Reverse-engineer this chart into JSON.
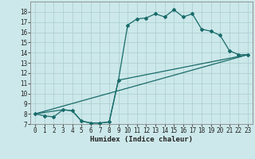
{
  "title": "",
  "xlabel": "Humidex (Indice chaleur)",
  "background_color": "#cce8ea",
  "grid_color": "#aacccc",
  "line_color": "#1a6b6b",
  "xlim": [
    -0.5,
    23.5
  ],
  "ylim": [
    7,
    19
  ],
  "xticks": [
    0,
    1,
    2,
    3,
    4,
    5,
    6,
    7,
    8,
    9,
    10,
    11,
    12,
    13,
    14,
    15,
    16,
    17,
    18,
    19,
    20,
    21,
    22,
    23
  ],
  "yticks": [
    7,
    8,
    9,
    10,
    11,
    12,
    13,
    14,
    15,
    16,
    17,
    18
  ],
  "line1_x": [
    0,
    1,
    2,
    3,
    4,
    5,
    6,
    7,
    8,
    9,
    10,
    11,
    12,
    13,
    14,
    15,
    16,
    17,
    18,
    19,
    20,
    21,
    22,
    23
  ],
  "line1_y": [
    8.0,
    7.8,
    7.7,
    8.4,
    8.3,
    7.3,
    7.1,
    7.1,
    7.2,
    11.3,
    16.7,
    17.3,
    17.4,
    17.8,
    17.5,
    18.2,
    17.5,
    17.8,
    16.3,
    16.1,
    15.7,
    14.2,
    13.8,
    13.8
  ],
  "line2_x": [
    0,
    23
  ],
  "line2_y": [
    8.0,
    13.8
  ],
  "line3_x": [
    0,
    3,
    4,
    5,
    6,
    7,
    8,
    9,
    23
  ],
  "line3_y": [
    8.0,
    8.4,
    8.3,
    7.3,
    7.1,
    7.1,
    7.2,
    11.3,
    13.8
  ],
  "marker": "D",
  "markersize": 2.0,
  "linewidth": 0.9,
  "tick_fontsize": 5.5,
  "xlabel_fontsize": 6.5
}
